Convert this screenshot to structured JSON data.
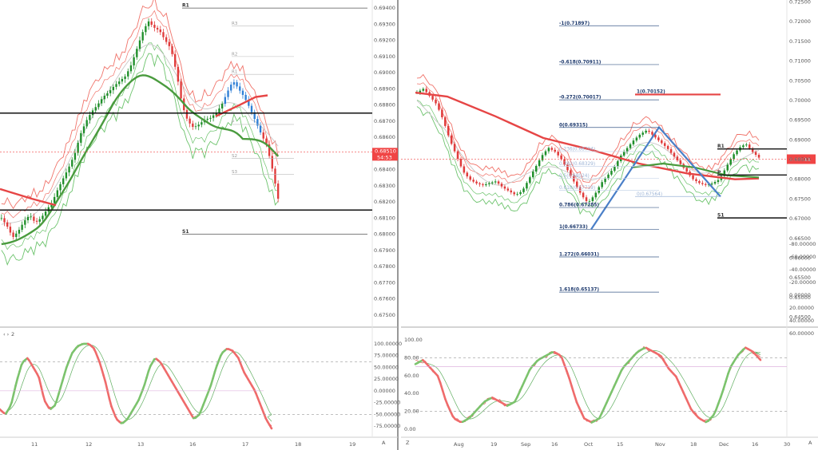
{
  "colors": {
    "up": "#1f8f2a",
    "down": "#e03b3b",
    "blue_bar": "#2f7fd6",
    "bb_red": "#f0736a",
    "bb_green": "#6cc36c",
    "ma_green": "#4a9b3e",
    "ma_red": "#e64545",
    "ma_grey": "#c8c8c8",
    "level_black": "#111111",
    "price_badge": "#f04545",
    "fib_line": "#3b5b8a",
    "divider": "#9a9a9a",
    "stoch_main_up": "#7cc36d",
    "stoch_main_down": "#ef6b6b"
  },
  "chart_data": [
    {
      "type": "line",
      "name": "left-price-pane",
      "y_range": [
        0.6745,
        0.6945
      ],
      "y_ticks": [
        "0.69400",
        "0.69300",
        "0.69200",
        "0.69100",
        "0.69000",
        "0.68900",
        "0.68800",
        "0.68700",
        "0.68600",
        "0.68400",
        "0.68300",
        "0.68200",
        "0.68100",
        "0.68000",
        "0.67900",
        "0.67800",
        "0.67700",
        "0.67600",
        "0.67500"
      ],
      "x_ticks": [
        "11",
        "12",
        "13",
        "16",
        "17",
        "18",
        "19"
      ],
      "current_price_label": "0.68510",
      "countdown_label": "54:53",
      "levels": [
        {
          "label": "R1",
          "value": 0.694
        },
        {
          "label": "S1",
          "value": 0.68
        },
        {
          "label": "R3",
          "value": 0.6929
        },
        {
          "label": "R2",
          "value": 0.691
        },
        {
          "label": "R1",
          "value": 0.6899
        },
        {
          "label": "P",
          "value": 0.6868
        },
        {
          "label": "S2",
          "value": 0.6847
        },
        {
          "label": "S3",
          "value": 0.6837
        }
      ],
      "support_resistance": [
        0.6875,
        0.6815
      ],
      "close_series": [
        0.681,
        0.6805,
        0.6798,
        0.6802,
        0.6808,
        0.6812,
        0.6807,
        0.681,
        0.6815,
        0.682,
        0.6828,
        0.6835,
        0.6842,
        0.685,
        0.6862,
        0.687,
        0.6876,
        0.688,
        0.6885,
        0.6888,
        0.6892,
        0.6895,
        0.6898,
        0.6905,
        0.6915,
        0.6925,
        0.6932,
        0.6928,
        0.6926,
        0.692,
        0.6915,
        0.69,
        0.688,
        0.687,
        0.6866,
        0.6868,
        0.6871,
        0.6872,
        0.6875,
        0.688,
        0.6888,
        0.6895,
        0.689,
        0.6885,
        0.6878,
        0.687,
        0.6862,
        0.6855,
        0.684,
        0.6822
      ]
    },
    {
      "type": "line",
      "name": "right-price-pane",
      "y_range": [
        0.6435,
        0.7255
      ],
      "y_ticks": [
        "0.72500",
        "0.72000",
        "0.71500",
        "0.71000",
        "0.70500",
        "0.70000",
        "0.69500",
        "0.69000",
        "0.68500",
        "0.68000",
        "0.67500",
        "0.67000",
        "0.66500",
        "0.66000",
        "0.65500",
        "0.65000",
        "0.64500"
      ],
      "x_ticks": [
        "Aug",
        "19",
        "Sep",
        "16",
        "Oct",
        "15",
        "Nov",
        "18",
        "Dec",
        "16",
        "30"
      ],
      "current_price_label": "0.68511",
      "fib_levels": [
        {
          "label": "-1(0.71897)",
          "value": 0.71897
        },
        {
          "label": "-0.618(0.70911)",
          "value": 0.70911
        },
        {
          "label": "-0.272(0.70017)",
          "value": 0.70017
        },
        {
          "label": "0(0.69315)",
          "value": 0.69315
        },
        {
          "label": "0.236(0.68704)",
          "value": 0.68704
        },
        {
          "label": "0.382(0.68329)",
          "value": 0.68329
        },
        {
          "label": "0.5(0.68024)",
          "value": 0.68024
        },
        {
          "label": "0.618(0.67719)",
          "value": 0.67719
        },
        {
          "label": "0.786(0.67285)",
          "value": 0.67285
        },
        {
          "label": "1(0.66733)",
          "value": 0.66733
        },
        {
          "label": "1.272(0.66031)",
          "value": 0.66031
        },
        {
          "label": "1.618(0.65137)",
          "value": 0.65137
        }
      ],
      "fib_right_levels": [
        {
          "label": "1(0.70152)",
          "value": 0.70152
        },
        {
          "label": "0(0.67564)",
          "value": 0.67564
        }
      ],
      "levels": [
        {
          "label": "R1",
          "value": 0.6877
        },
        {
          "label": "P",
          "value": 0.6811
        },
        {
          "label": "S1",
          "value": 0.6702
        }
      ],
      "close_series": [
        0.702,
        0.703,
        0.701,
        0.699,
        0.695,
        0.69,
        0.686,
        0.682,
        0.68,
        0.679,
        0.6785,
        0.679,
        0.6795,
        0.678,
        0.677,
        0.676,
        0.677,
        0.68,
        0.683,
        0.686,
        0.688,
        0.687,
        0.685,
        0.682,
        0.679,
        0.676,
        0.674,
        0.676,
        0.679,
        0.681,
        0.683,
        0.686,
        0.688,
        0.69,
        0.6915,
        0.6925,
        0.691,
        0.6895,
        0.688,
        0.686,
        0.684,
        0.682,
        0.68,
        0.679,
        0.6785,
        0.679,
        0.68,
        0.683,
        0.686,
        0.688,
        0.689,
        0.687,
        0.6855
      ]
    },
    {
      "type": "line",
      "name": "left-stochastic-pane",
      "pane_label": "2",
      "y_range": [
        -85,
        110
      ],
      "y_ticks": [
        "100.00000",
        "75.00000",
        "50.00000",
        "25.00000",
        "0.00000",
        "-25.00000",
        "-50.00000",
        "-75.00000"
      ],
      "dashed_levels": [
        80,
        20
      ],
      "main_series": [
        -40,
        -50,
        -30,
        20,
        60,
        70,
        50,
        30,
        -20,
        -40,
        -30,
        10,
        50,
        80,
        95,
        100,
        100,
        90,
        60,
        20,
        -30,
        -60,
        -70,
        -60,
        -40,
        -20,
        10,
        50,
        70,
        60,
        40,
        20,
        0,
        -20,
        -40,
        -60,
        -50,
        -20,
        10,
        50,
        80,
        90,
        85,
        70,
        40,
        20,
        0,
        -30,
        -60,
        -80
      ]
    },
    {
      "type": "line",
      "name": "right-stochastic-pane",
      "pane_label": "Z",
      "left_y_ticks": [
        "100.00",
        "80.00",
        "60.00",
        "40.00",
        "20.00",
        "0.00"
      ],
      "right_y_ticks": [
        "60.00000",
        "40.00000",
        "20.00000",
        "0.00000",
        "-20.00000",
        "-40.00000",
        "-60.00000",
        "-80.00000"
      ],
      "dashed_levels": [
        80,
        20
      ],
      "main_series": [
        75,
        80,
        70,
        60,
        30,
        10,
        5,
        10,
        20,
        30,
        35,
        30,
        25,
        30,
        50,
        70,
        80,
        85,
        90,
        85,
        60,
        30,
        10,
        5,
        10,
        30,
        50,
        70,
        80,
        90,
        95,
        90,
        85,
        70,
        60,
        40,
        20,
        10,
        5,
        15,
        40,
        70,
        85,
        95,
        90,
        80
      ]
    }
  ]
}
